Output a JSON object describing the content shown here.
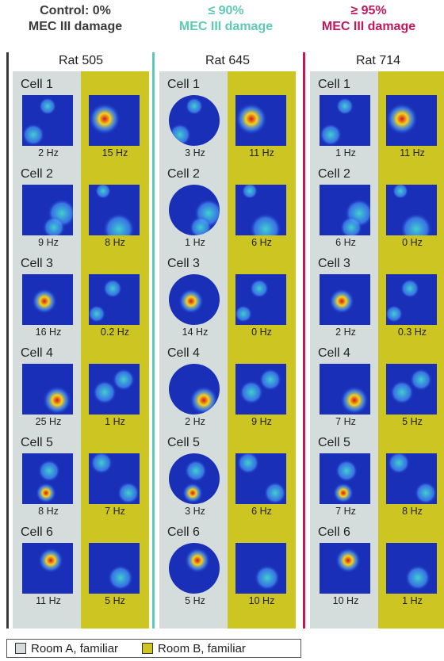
{
  "headers": [
    {
      "line1": "Control: 0%",
      "line2": "MEC III damage",
      "color": "#3a3a3a"
    },
    {
      "line1": "≤ 90%",
      "line2": "MEC III damage",
      "color": "#5ec9b6"
    },
    {
      "line1": "≥ 95%",
      "line2": "MEC III damage",
      "color": "#c2185b"
    }
  ],
  "rats": [
    {
      "name": "Rat 505",
      "room_a_shape": "square",
      "cells": [
        {
          "label": "Cell 1",
          "rate_a": "2 Hz",
          "rate_b": "15 Hz"
        },
        {
          "label": "Cell 2",
          "rate_a": "9 Hz",
          "rate_b": "8 Hz"
        },
        {
          "label": "Cell 3",
          "rate_a": "16 Hz",
          "rate_b": "0.2 Hz"
        },
        {
          "label": "Cell 4",
          "rate_a": "25 Hz",
          "rate_b": "1 Hz"
        },
        {
          "label": "Cell 5",
          "rate_a": "8 Hz",
          "rate_b": "7 Hz"
        },
        {
          "label": "Cell 6",
          "rate_a": "11 Hz",
          "rate_b": "5 Hz"
        }
      ]
    },
    {
      "name": "Rat 645",
      "room_a_shape": "circle",
      "cells": [
        {
          "label": "Cell 1",
          "rate_a": "3 Hz",
          "rate_b": "11 Hz"
        },
        {
          "label": "Cell 2",
          "rate_a": "1 Hz",
          "rate_b": "6 Hz"
        },
        {
          "label": "Cell 3",
          "rate_a": "14 Hz",
          "rate_b": "0 Hz"
        },
        {
          "label": "Cell 4",
          "rate_a": "2 Hz",
          "rate_b": "9 Hz"
        },
        {
          "label": "Cell 5",
          "rate_a": "3 Hz",
          "rate_b": "6 Hz"
        },
        {
          "label": "Cell 6",
          "rate_a": "5 Hz",
          "rate_b": "10 Hz"
        }
      ]
    },
    {
      "name": "Rat 714",
      "room_a_shape": "square",
      "cells": [
        {
          "label": "Cell 1",
          "rate_a": "1 Hz",
          "rate_b": "11 Hz"
        },
        {
          "label": "Cell 2",
          "rate_a": "6 Hz",
          "rate_b": "0 Hz"
        },
        {
          "label": "Cell 3",
          "rate_a": "2 Hz",
          "rate_b": "0.3 Hz"
        },
        {
          "label": "Cell 4",
          "rate_a": "7 Hz",
          "rate_b": "5 Hz"
        },
        {
          "label": "Cell 5",
          "rate_a": "7 Hz",
          "rate_b": "8 Hz"
        },
        {
          "label": "Cell 6",
          "rate_a": "10 Hz",
          "rate_b": "1 Hz"
        }
      ]
    }
  ],
  "legend": [
    {
      "label": "Room A, familiar",
      "color": "#d5dcdc"
    },
    {
      "label": "Room B, familiar",
      "color": "#cdc521"
    }
  ],
  "colors": {
    "map_background": "#1a2fb8",
    "divider_control": "#3a3a3a",
    "divider_partial": "#5ec9b6",
    "divider_full": "#c2185b"
  }
}
